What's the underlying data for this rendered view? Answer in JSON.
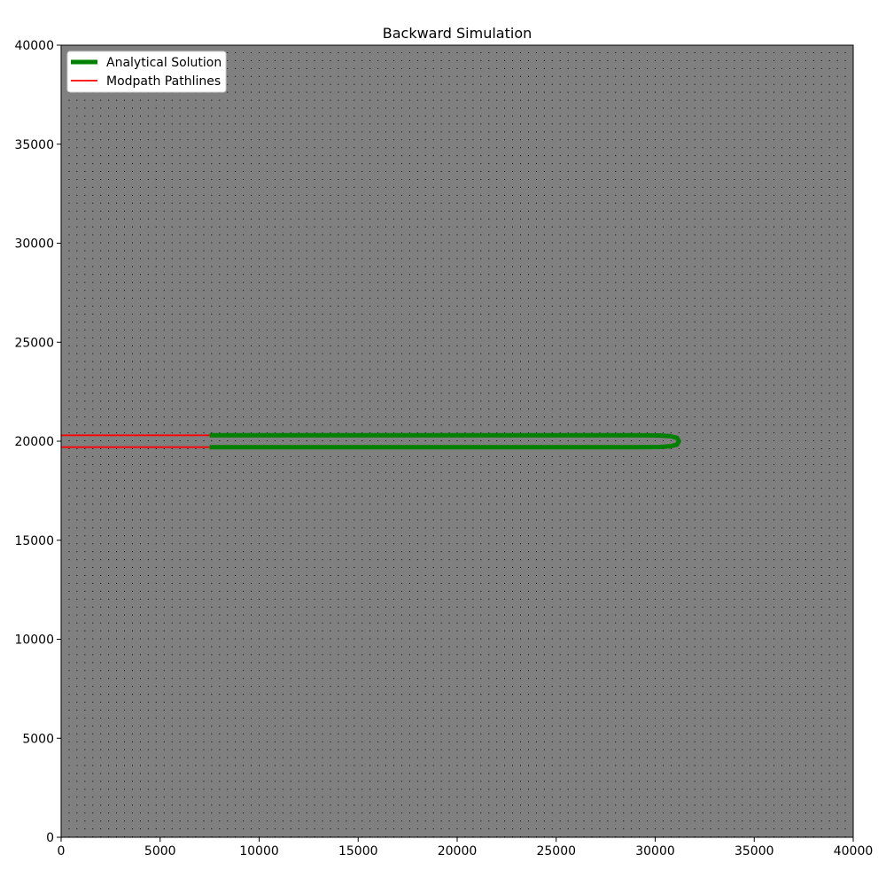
{
  "chart_data": {
    "type": "line",
    "title": "Backward Simulation",
    "xlabel": "",
    "ylabel": "",
    "xlim": [
      0,
      40000
    ],
    "ylim": [
      0,
      40000
    ],
    "xticks": [
      "0",
      "5000",
      "10000",
      "15000",
      "20000",
      "25000",
      "30000",
      "35000",
      "40000"
    ],
    "yticks": [
      "0",
      "5000",
      "10000",
      "15000",
      "20000",
      "25000",
      "30000",
      "35000",
      "40000"
    ],
    "legend_position": "top-left",
    "background_color": "#808080",
    "grid": "dotted black cell grid, 100 x 100 cells",
    "grid_cells": 100,
    "series": [
      {
        "name": "Analytical Solution",
        "color": "#008000",
        "style": "thick solid",
        "x": [
          7500,
          10000,
          15000,
          20000,
          25000,
          29000,
          30200,
          30800,
          31100,
          31200,
          31100,
          30800,
          30200,
          29000,
          25000,
          20000,
          15000,
          10000,
          7500
        ],
        "y": [
          20300,
          20300,
          20300,
          20300,
          20300,
          20300,
          20290,
          20250,
          20170,
          20000,
          19830,
          19750,
          19710,
          19700,
          19700,
          19700,
          19700,
          19700,
          19700
        ]
      },
      {
        "name": "Modpath Pathlines",
        "color": "#ff0000",
        "style": "thin solid",
        "lines": [
          {
            "x": [
              0,
              7500
            ],
            "y": [
              20300,
              20300
            ]
          },
          {
            "x": [
              0,
              7500
            ],
            "y": [
              19700,
              19700
            ]
          }
        ]
      }
    ]
  }
}
